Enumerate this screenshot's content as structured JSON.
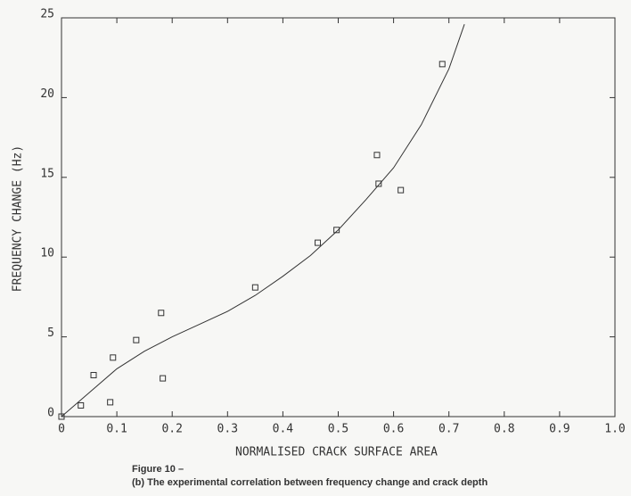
{
  "chart_data": {
    "type": "scatter",
    "x_label": "NORMALISED CRACK SURFACE AREA",
    "y_label": "FREQUENCY CHANGE (Hz)",
    "caption": [
      "Figure 10 –",
      "(b) The experimental correlation between frequency change and crack depth"
    ],
    "xlim": [
      0,
      1
    ],
    "ylim": [
      0,
      25
    ],
    "xticks": [
      0,
      0.1,
      0.2,
      0.3,
      0.4,
      0.5,
      0.6,
      0.7,
      0.8,
      0.9,
      {
        "value": 1,
        "label": "1.0"
      }
    ],
    "yticks": [
      0,
      5,
      10,
      15,
      20,
      25
    ],
    "color": "#333333",
    "series": [
      {
        "kind": "markers",
        "x": [
          0,
          0.035,
          0.058,
          0.088,
          0.093,
          0.135,
          0.18,
          0.183,
          0.35,
          0.463,
          0.497,
          0.57,
          0.573,
          0.613,
          0.688
        ],
        "values": [
          0,
          0.7,
          2.6,
          0.9,
          3.7,
          4.8,
          6.5,
          2.4,
          8.1,
          10.9,
          11.7,
          16.4,
          14.6,
          14.2,
          22.1
        ]
      },
      {
        "kind": "line",
        "x": [
          0,
          0.05,
          0.1,
          0.15,
          0.2,
          0.25,
          0.3,
          0.35,
          0.4,
          0.45,
          0.5,
          0.55,
          0.6,
          0.65,
          0.7,
          0.728
        ],
        "values": [
          0,
          1.5,
          3.0,
          4.1,
          5.0,
          5.8,
          6.6,
          7.6,
          8.8,
          10.1,
          11.7,
          13.6,
          15.6,
          18.3,
          21.8,
          24.6
        ]
      }
    ]
  }
}
